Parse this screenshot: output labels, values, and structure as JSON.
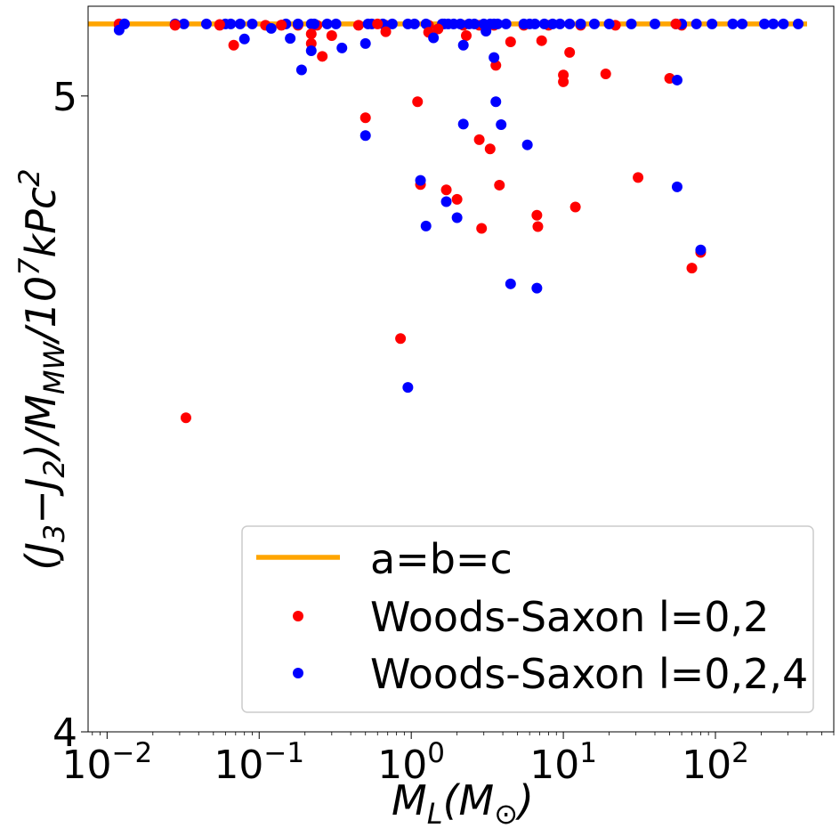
{
  "chart_data": {
    "type": "scatter",
    "xscale": "log",
    "yscale": "log",
    "xlim": [
      0.0075,
      600
    ],
    "ylim": [
      4.0,
      5.16
    ],
    "xlabel": "M_L(M_⊙)",
    "ylabel": "(J_3 − J_2)/M_MW/10^7 kPc^2",
    "x_ticks": [
      {
        "value": 0.01,
        "base": "10",
        "exp": "−2"
      },
      {
        "value": 0.1,
        "base": "10",
        "exp": "−1"
      },
      {
        "value": 1,
        "base": "10",
        "exp": "0"
      },
      {
        "value": 10,
        "base": "10",
        "exp": "1"
      },
      {
        "value": 100,
        "base": "10",
        "exp": "2"
      }
    ],
    "y_ticks": [
      {
        "value": 4,
        "label": "4"
      },
      {
        "value": 5,
        "label": "5"
      }
    ],
    "legend_position": "lower-right",
    "colors": {
      "line": "#ffa500",
      "l02": "#ff0000",
      "l024": "#0000ff"
    },
    "series": [
      {
        "name": "a=b=c",
        "kind": "hline",
        "value": 5.128
      },
      {
        "name": "Woods-Saxon l=0,2",
        "kind": "scatter",
        "points": [
          [
            0.012,
            5.128
          ],
          [
            0.028,
            5.126
          ],
          [
            0.033,
            4.466
          ],
          [
            0.055,
            5.127
          ],
          [
            0.068,
            5.09
          ],
          [
            0.14,
            5.126
          ],
          [
            0.22,
            5.11
          ],
          [
            0.22,
            5.093
          ],
          [
            0.26,
            5.07
          ],
          [
            0.3,
            5.107
          ],
          [
            0.5,
            4.962
          ],
          [
            0.6,
            5.128
          ],
          [
            0.68,
            5.114
          ],
          [
            0.85,
            4.592
          ],
          [
            1.1,
            4.99
          ],
          [
            1.15,
            4.847
          ],
          [
            1.3,
            5.113
          ],
          [
            1.5,
            5.119
          ],
          [
            1.7,
            4.838
          ],
          [
            2.0,
            4.822
          ],
          [
            2.3,
            5.107
          ],
          [
            2.8,
            4.924
          ],
          [
            2.9,
            4.773
          ],
          [
            3.3,
            4.908
          ],
          [
            3.6,
            5.054
          ],
          [
            3.8,
            4.846
          ],
          [
            4.5,
            5.096
          ],
          [
            6.7,
            4.795
          ],
          [
            6.8,
            4.776
          ],
          [
            7.2,
            5.098
          ],
          [
            10,
            5.037
          ],
          [
            10,
            5.025
          ],
          [
            11,
            5.077
          ],
          [
            12,
            4.809
          ],
          [
            19,
            5.039
          ],
          [
            31,
            4.859
          ],
          [
            50,
            5.031
          ],
          [
            55,
            5.128
          ],
          [
            70,
            4.707
          ],
          [
            80,
            4.733
          ]
        ]
      },
      {
        "name": "Woods-Saxon l=0,2,4",
        "kind": "scatter",
        "points": [
          [
            0.012,
            5.117
          ],
          [
            0.013,
            5.128
          ],
          [
            0.08,
            5.101
          ],
          [
            0.12,
            5.12
          ],
          [
            0.16,
            5.102
          ],
          [
            0.19,
            5.046
          ],
          [
            0.22,
            5.08
          ],
          [
            0.35,
            5.085
          ],
          [
            0.5,
            5.093
          ],
          [
            0.5,
            4.931
          ],
          [
            0.95,
            4.514
          ],
          [
            1.15,
            4.854
          ],
          [
            1.25,
            4.777
          ],
          [
            1.4,
            5.103
          ],
          [
            1.7,
            4.818
          ],
          [
            2.0,
            4.791
          ],
          [
            2.2,
            5.09
          ],
          [
            2.2,
            4.951
          ],
          [
            3.1,
            5.115
          ],
          [
            3.5,
            5.068
          ],
          [
            3.6,
            4.99
          ],
          [
            3.9,
            4.95
          ],
          [
            4.5,
            4.681
          ],
          [
            5.8,
            4.915
          ],
          [
            6.7,
            4.674
          ],
          [
            56,
            5.028
          ],
          [
            56,
            4.843
          ],
          [
            80,
            4.737
          ]
        ]
      }
    ],
    "line_xs": [
      0.01,
      0.035,
      0.05,
      0.09,
      0.13,
      0.23,
      0.55,
      1.0,
      1.9,
      2.5,
      4.0,
      7,
      13,
      22,
      40,
      75,
      140,
      350
    ],
    "blue_line_xs": [
      0.012,
      0.013,
      0.028,
      0.032,
      0.045,
      0.06,
      0.065,
      0.075,
      0.09,
      0.15,
      0.18,
      0.22,
      0.23,
      0.28,
      0.32,
      0.52,
      0.55,
      0.65,
      0.75,
      0.95,
      1.05,
      1.25,
      1.6,
      1.65,
      1.75,
      1.9,
      2.1,
      2.4,
      2.6,
      3.0,
      3.3,
      3.5,
      3.7,
      4.2,
      5.5,
      6,
      6.5,
      7.5,
      8.5,
      9.5,
      11,
      13,
      16,
      20,
      28,
      40,
      55,
      60,
      75,
      95,
      130,
      150,
      210,
      240,
      280,
      350
    ],
    "red_line_xs": [
      0.012,
      0.028,
      0.055,
      0.11,
      0.14,
      0.18,
      0.24,
      0.45,
      0.68,
      1.3,
      2.2,
      2.8,
      3.5,
      5.5,
      8,
      13,
      22,
      60
    ],
    "legend": {
      "line_label": "a=b=c",
      "red_label": "Woods-Saxon l=0,2",
      "blue_label": "Woods-Saxon l=0,2,4"
    }
  }
}
